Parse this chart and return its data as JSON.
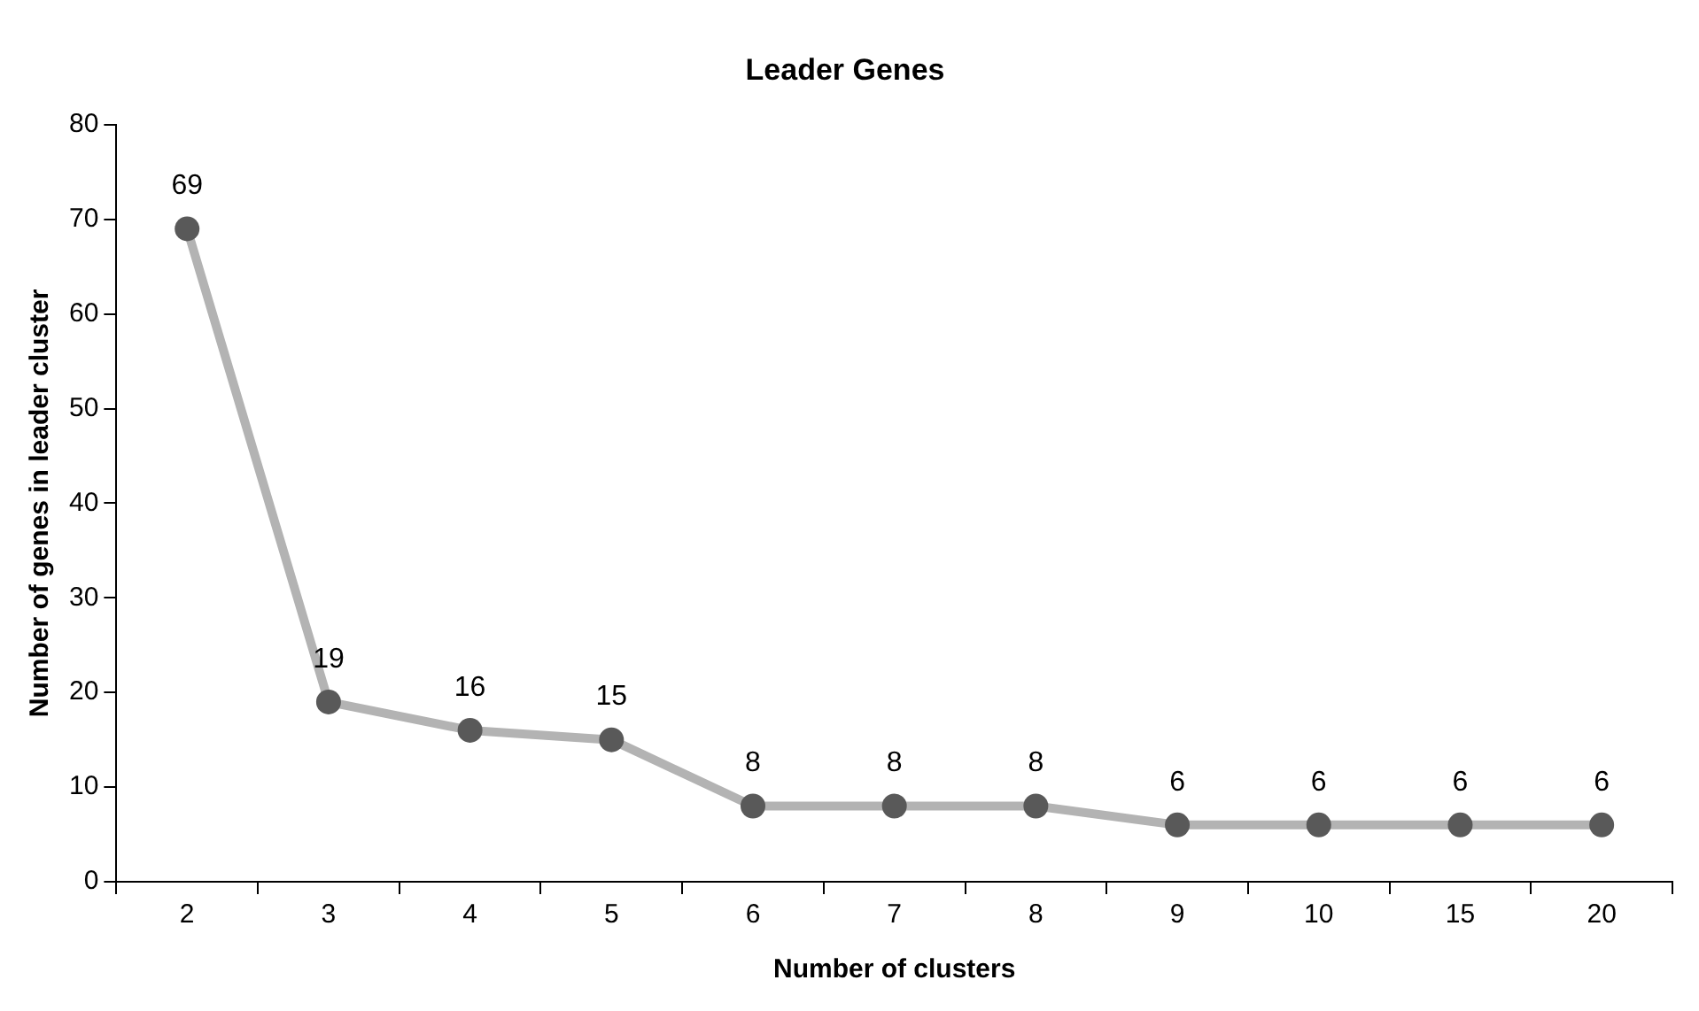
{
  "chart_data": {
    "type": "line",
    "title": "Leader Genes",
    "xlabel": "Number of clusters",
    "ylabel": "Number of genes in leader cluster",
    "categories": [
      "2",
      "3",
      "4",
      "5",
      "6",
      "7",
      "8",
      "9",
      "10",
      "15",
      "20"
    ],
    "series": [
      {
        "color": "#b3b3b3",
        "values": [
          69,
          19,
          16,
          15,
          8,
          8,
          8,
          6,
          6,
          6,
          6
        ]
      }
    ],
    "ylim": [
      0,
      80
    ],
    "yticks": [
      0,
      10,
      20,
      30,
      40,
      50,
      60,
      70,
      80
    ],
    "grid": false,
    "legend": false,
    "marker": "circle",
    "line_style": "solid",
    "data_labels": true
  }
}
